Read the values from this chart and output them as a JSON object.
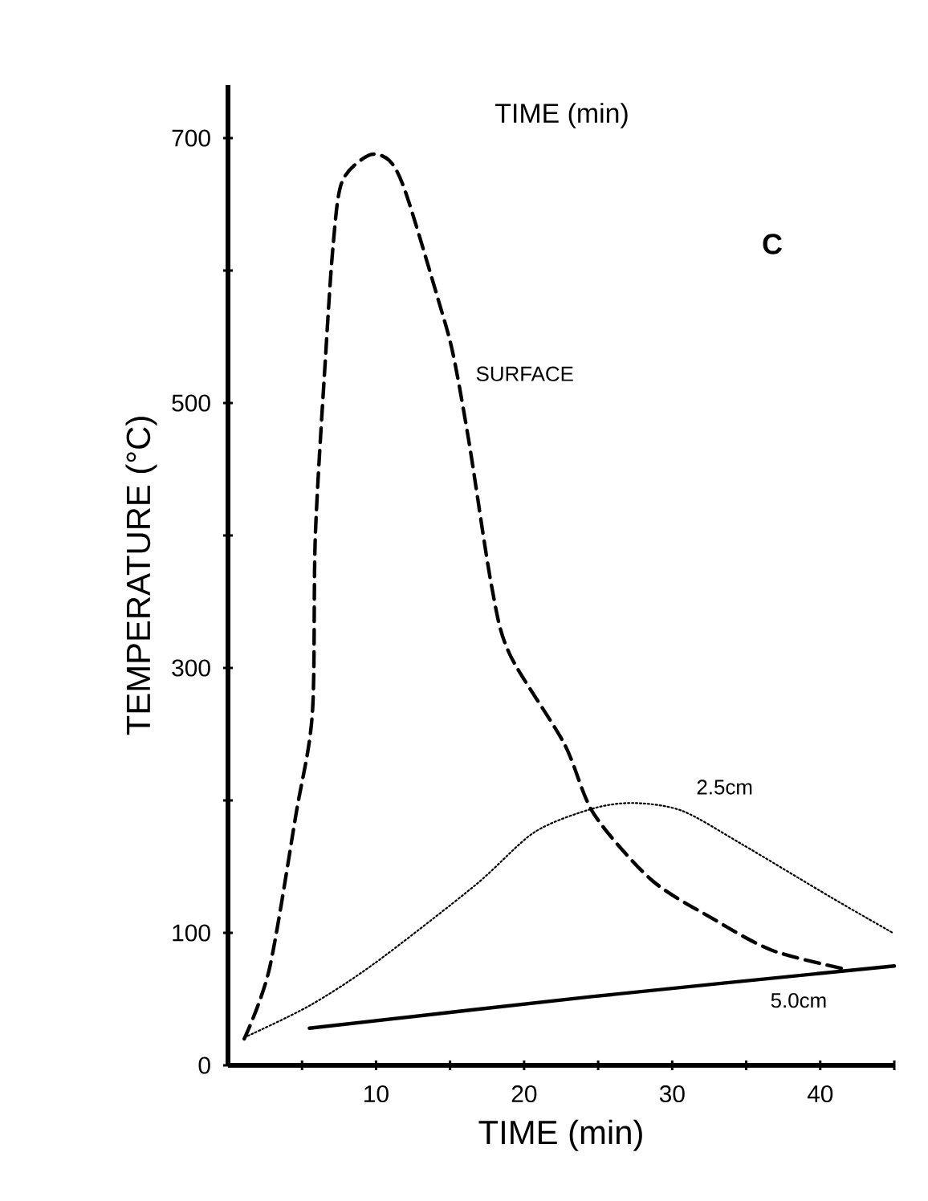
{
  "chart_data": {
    "type": "line",
    "xlabel": "TIME (min)",
    "ylabel": "TEMPERATURE (°C)",
    "annotations": [
      "TIME (min)",
      "C"
    ],
    "xlim": [
      0,
      45
    ],
    "ylim": [
      0,
      740
    ],
    "xticks": [
      {
        "value": 5,
        "label": null
      },
      10,
      {
        "value": 15,
        "label": null
      },
      20,
      {
        "value": 25,
        "label": null
      },
      30,
      {
        "value": 35,
        "label": null
      },
      40,
      {
        "value": 45,
        "label": null
      }
    ],
    "yticks": [
      0,
      100,
      {
        "value": 200,
        "label": null
      },
      300,
      {
        "value": 400,
        "label": null
      },
      500,
      {
        "value": 600,
        "label": null
      },
      700
    ],
    "grid": false,
    "legend": false,
    "marker": "none",
    "series": [
      {
        "name": "SURFACE",
        "color": "#000000",
        "line_style": "dashed",
        "x": [
          1.1,
          2.8,
          4.6,
          5.7,
          5.9,
          6.6,
          7.1,
          7.7,
          9.5,
          10.9,
          12,
          14.2,
          15.2,
          16.3,
          17.8,
          19,
          22.7,
          24.7,
          28.6,
          32.7,
          36.7,
          41.5
        ],
        "values": [
          20,
          73,
          190,
          266,
          400,
          537,
          619,
          667,
          687,
          683,
          659,
          578,
          537,
          469,
          362,
          311,
          243,
          190,
          140,
          111,
          87,
          73
        ]
      },
      {
        "name": "2.5cm",
        "color": "#000000",
        "line_style": "dotted",
        "x": [
          1.1,
          5.5,
          9.9,
          16.7,
          20.7,
          24.7,
          27.5,
          30.7,
          34.7,
          40.7,
          44.9
        ],
        "values": [
          21,
          45,
          77,
          136,
          176,
          194,
          198,
          192,
          167,
          127,
          100
        ]
      },
      {
        "name": "5.0cm",
        "color": "#000000",
        "line_style": "solid",
        "x": [
          5.5,
          24.7,
          45
        ],
        "values": [
          28,
          52,
          75
        ]
      }
    ]
  }
}
